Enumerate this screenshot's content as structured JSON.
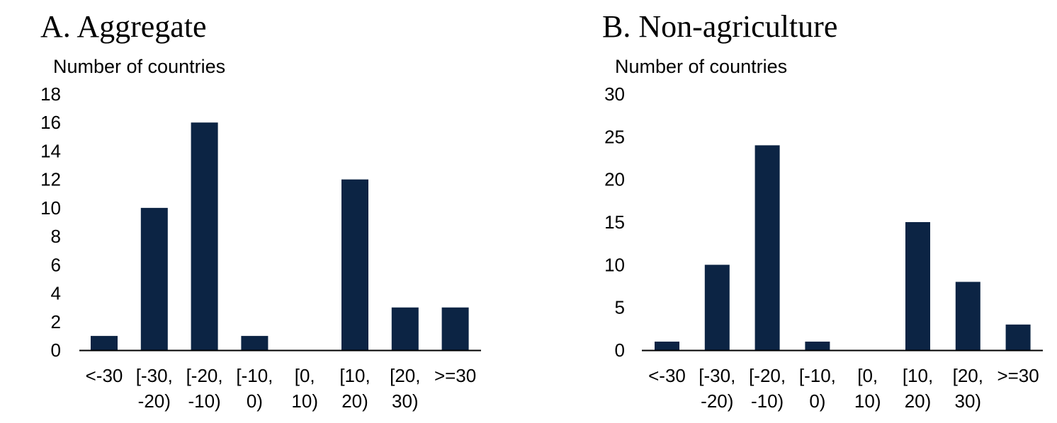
{
  "chart_data": [
    {
      "type": "bar",
      "title": "A.  Aggregate",
      "ylabel": "Number of countries",
      "xlabel": "",
      "categories": [
        "<-30",
        "[-30, -20)",
        "[-20, -10)",
        "[-10, 0)",
        "[0, 10)",
        "[10, 20)",
        "[20, 30)",
        ">=30"
      ],
      "category_lines": [
        [
          "<-30"
        ],
        [
          "[-30,",
          "-20)"
        ],
        [
          "[-20,",
          "-10)"
        ],
        [
          "[-10,",
          "0)"
        ],
        [
          "[0,",
          "10)"
        ],
        [
          "[10,",
          "20)"
        ],
        [
          "[20,",
          "30)"
        ],
        [
          ">=30"
        ]
      ],
      "values": [
        1,
        10,
        16,
        1,
        0,
        12,
        3,
        3
      ],
      "ylim": [
        0,
        18
      ],
      "yticks": [
        0,
        2,
        4,
        6,
        8,
        10,
        12,
        14,
        16,
        18
      ],
      "grid": false,
      "bar_color": "#0c2444"
    },
    {
      "type": "bar",
      "title": "B.  Non-agriculture",
      "ylabel": "Number of countries",
      "xlabel": "",
      "categories": [
        "<-30",
        "[-30, -20)",
        "[-20, -10)",
        "[-10, 0)",
        "[0, 10)",
        "[10, 20)",
        "[20, 30)",
        ">=30"
      ],
      "category_lines": [
        [
          "<-30"
        ],
        [
          "[-30,",
          "-20)"
        ],
        [
          "[-20,",
          "-10)"
        ],
        [
          "[-10,",
          "0)"
        ],
        [
          "[0,",
          "10)"
        ],
        [
          "[10,",
          "20)"
        ],
        [
          "[20,",
          "30)"
        ],
        [
          ">=30"
        ]
      ],
      "values": [
        1,
        10,
        24,
        1,
        0,
        15,
        8,
        3
      ],
      "ylim": [
        0,
        30
      ],
      "yticks": [
        0,
        5,
        10,
        15,
        20,
        25,
        30
      ],
      "grid": false,
      "bar_color": "#0c2444"
    }
  ]
}
